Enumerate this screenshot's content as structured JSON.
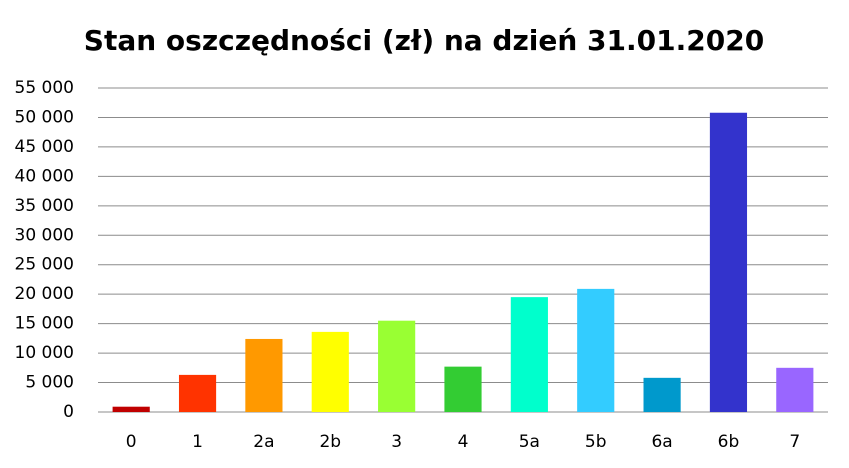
{
  "chart_data": {
    "type": "bar",
    "title": "Stan oszczędności (zł) na dzień 31.01.2020",
    "categories": [
      "0",
      "1",
      "2a",
      "2b",
      "3",
      "4",
      "5a",
      "5b",
      "6a",
      "6b",
      "7"
    ],
    "values": [
      900,
      6300,
      12400,
      13600,
      15500,
      7700,
      19500,
      20900,
      5800,
      50800,
      7500
    ],
    "colors": [
      "#c00000",
      "#ff3300",
      "#ff9900",
      "#ffff00",
      "#99ff33",
      "#33cc33",
      "#00ffcc",
      "#33ccff",
      "#0099cc",
      "#3333cc",
      "#9966ff"
    ],
    "ylim": [
      0,
      55000
    ],
    "yticks": [
      0,
      {
        "value": 5000,
        "label": "5 000"
      },
      {
        "value": 10000,
        "label": "10 000"
      },
      {
        "value": 15000,
        "label": "15 000"
      },
      {
        "value": 20000,
        "label": "20 000"
      },
      {
        "value": 25000,
        "label": "25 000"
      },
      {
        "value": 30000,
        "label": "30 000"
      },
      {
        "value": 35000,
        "label": "35 000"
      },
      {
        "value": 40000,
        "label": "40 000"
      },
      {
        "value": 45000,
        "label": "45 000"
      },
      {
        "value": 50000,
        "label": "50 000"
      },
      {
        "value": 55000,
        "label": "55 000"
      }
    ],
    "grid": true
  }
}
